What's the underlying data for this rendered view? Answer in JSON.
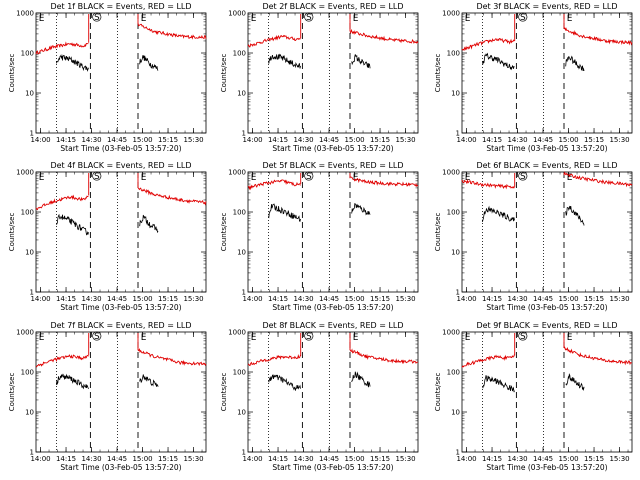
{
  "chart_data": {
    "type": "line",
    "layout": "3x3 grid",
    "shared": {
      "title_suffix": "BLACK = Events, RED = LLD",
      "xlabel": "Start Time (03-Feb-05 13:57:20)",
      "ylabel": "Counts/sec",
      "yscale": "log",
      "ylim": [
        1,
        1000
      ],
      "yticks": [
        {
          "value": 1,
          "label": "1"
        },
        {
          "value": 10,
          "label": "10"
        },
        {
          "value": 100,
          "label": "100"
        },
        {
          "value": 1000,
          "label": "1000"
        }
      ],
      "xlim_minutes": [
        0,
        100
      ],
      "xticks": [
        {
          "t": 2.67,
          "label": "14:00"
        },
        {
          "t": 17.67,
          "label": "14:15"
        },
        {
          "t": 32.67,
          "label": "14:30"
        },
        {
          "t": 47.67,
          "label": "14:45"
        },
        {
          "t": 62.67,
          "label": "15:00"
        },
        {
          "t": 77.67,
          "label": "15:15"
        },
        {
          "t": 92.67,
          "label": "15:30"
        }
      ],
      "dotted_lines_t": [
        12,
        48
      ],
      "dashed_lines_t": [
        32,
        60
      ],
      "markers": [
        {
          "label": "E",
          "t": 1
        },
        {
          "label": "S",
          "t": 34
        },
        {
          "label": "E",
          "t": 61
        }
      ],
      "series_names": [
        "Events",
        "LLD"
      ],
      "series_colors": {
        "Events": "#000000",
        "LLD": "#e00000"
      }
    },
    "panels": [
      {
        "title": "Det 1f",
        "lld_pre": [
          [
            0,
            100
          ],
          [
            10,
            140
          ],
          [
            20,
            170
          ],
          [
            28,
            150
          ],
          [
            31,
            180
          ]
        ],
        "lld_post": [
          [
            60,
            520
          ],
          [
            70,
            340
          ],
          [
            85,
            260
          ],
          [
            100,
            245
          ]
        ],
        "evt_pre": [
          [
            12,
            50
          ],
          [
            14,
            80
          ],
          [
            20,
            70
          ],
          [
            28,
            45
          ],
          [
            31,
            40
          ]
        ],
        "evt_post": [
          [
            61,
            60
          ],
          [
            63,
            80
          ],
          [
            68,
            50
          ],
          [
            72,
            40
          ]
        ]
      },
      {
        "title": "Det 2f",
        "lld_pre": [
          [
            0,
            150
          ],
          [
            10,
            200
          ],
          [
            20,
            260
          ],
          [
            28,
            220
          ],
          [
            31,
            230
          ]
        ],
        "lld_post": [
          [
            60,
            350
          ],
          [
            70,
            270
          ],
          [
            85,
            210
          ],
          [
            100,
            190
          ]
        ],
        "evt_pre": [
          [
            12,
            60
          ],
          [
            14,
            85
          ],
          [
            20,
            75
          ],
          [
            28,
            50
          ],
          [
            31,
            45
          ]
        ],
        "evt_post": [
          [
            61,
            55
          ],
          [
            63,
            80
          ],
          [
            68,
            55
          ],
          [
            72,
            45
          ]
        ]
      },
      {
        "title": "Det 3f",
        "lld_pre": [
          [
            0,
            120
          ],
          [
            10,
            170
          ],
          [
            20,
            220
          ],
          [
            28,
            190
          ],
          [
            31,
            200
          ]
        ],
        "lld_post": [
          [
            60,
            400
          ],
          [
            70,
            270
          ],
          [
            85,
            200
          ],
          [
            100,
            180
          ]
        ],
        "evt_pre": [
          [
            12,
            55
          ],
          [
            14,
            85
          ],
          [
            20,
            70
          ],
          [
            28,
            45
          ],
          [
            31,
            42
          ]
        ],
        "evt_post": [
          [
            61,
            55
          ],
          [
            63,
            80
          ],
          [
            68,
            50
          ],
          [
            72,
            40
          ]
        ]
      },
      {
        "title": "Det 4f",
        "lld_pre": [
          [
            0,
            120
          ],
          [
            10,
            180
          ],
          [
            20,
            240
          ],
          [
            28,
            200
          ],
          [
            31,
            260
          ]
        ],
        "lld_post": [
          [
            60,
            400
          ],
          [
            70,
            270
          ],
          [
            85,
            200
          ],
          [
            100,
            170
          ]
        ],
        "evt_pre": [
          [
            12,
            50
          ],
          [
            14,
            80
          ],
          [
            20,
            60
          ],
          [
            28,
            35
          ],
          [
            31,
            30
          ]
        ],
        "evt_post": [
          [
            61,
            50
          ],
          [
            63,
            75
          ],
          [
            68,
            45
          ],
          [
            72,
            35
          ]
        ]
      },
      {
        "title": "Det 5f",
        "lld_pre": [
          [
            0,
            400
          ],
          [
            10,
            520
          ],
          [
            20,
            600
          ],
          [
            28,
            480
          ],
          [
            31,
            500
          ]
        ],
        "lld_post": [
          [
            60,
            700
          ],
          [
            70,
            560
          ],
          [
            85,
            500
          ],
          [
            100,
            480
          ]
        ],
        "evt_pre": [
          [
            12,
            80
          ],
          [
            14,
            140
          ],
          [
            20,
            110
          ],
          [
            28,
            75
          ],
          [
            31,
            65
          ]
        ],
        "evt_post": [
          [
            61,
            100
          ],
          [
            63,
            150
          ],
          [
            68,
            110
          ],
          [
            72,
            90
          ]
        ]
      },
      {
        "title": "Det 6f",
        "lld_pre": [
          [
            0,
            600
          ],
          [
            10,
            500
          ],
          [
            20,
            450
          ],
          [
            28,
            430
          ],
          [
            31,
            420
          ]
        ],
        "lld_post": [
          [
            60,
            900
          ],
          [
            70,
            700
          ],
          [
            85,
            550
          ],
          [
            100,
            480
          ]
        ],
        "evt_pre": [
          [
            12,
            60
          ],
          [
            14,
            120
          ],
          [
            20,
            100
          ],
          [
            28,
            70
          ],
          [
            31,
            60
          ]
        ],
        "evt_post": [
          [
            61,
            90
          ],
          [
            63,
            140
          ],
          [
            68,
            80
          ],
          [
            72,
            50
          ]
        ]
      },
      {
        "title": "Det 7f",
        "lld_pre": [
          [
            0,
            140
          ],
          [
            10,
            200
          ],
          [
            20,
            250
          ],
          [
            28,
            220
          ],
          [
            31,
            260
          ]
        ],
        "lld_post": [
          [
            60,
            350
          ],
          [
            70,
            240
          ],
          [
            85,
            170
          ],
          [
            100,
            160
          ]
        ],
        "evt_pre": [
          [
            12,
            50
          ],
          [
            14,
            80
          ],
          [
            20,
            70
          ],
          [
            28,
            45
          ],
          [
            31,
            40
          ]
        ],
        "evt_post": [
          [
            61,
            55
          ],
          [
            63,
            80
          ],
          [
            68,
            55
          ],
          [
            72,
            45
          ]
        ]
      },
      {
        "title": "Det 8f",
        "lld_pre": [
          [
            0,
            150
          ],
          [
            10,
            200
          ],
          [
            20,
            240
          ],
          [
            28,
            230
          ],
          [
            31,
            250
          ]
        ],
        "lld_post": [
          [
            60,
            350
          ],
          [
            70,
            240
          ],
          [
            85,
            190
          ],
          [
            100,
            180
          ]
        ],
        "evt_pre": [
          [
            12,
            50
          ],
          [
            14,
            80
          ],
          [
            20,
            65
          ],
          [
            28,
            40
          ],
          [
            31,
            40
          ]
        ],
        "evt_post": [
          [
            61,
            60
          ],
          [
            63,
            90
          ],
          [
            68,
            60
          ],
          [
            72,
            45
          ]
        ]
      },
      {
        "title": "Det 9f",
        "lld_pre": [
          [
            0,
            140
          ],
          [
            10,
            190
          ],
          [
            20,
            240
          ],
          [
            28,
            220
          ],
          [
            31,
            260
          ]
        ],
        "lld_post": [
          [
            60,
            400
          ],
          [
            70,
            260
          ],
          [
            85,
            190
          ],
          [
            100,
            170
          ]
        ],
        "evt_pre": [
          [
            12,
            40
          ],
          [
            14,
            70
          ],
          [
            20,
            60
          ],
          [
            28,
            40
          ],
          [
            31,
            35
          ]
        ],
        "evt_post": [
          [
            61,
            50
          ],
          [
            63,
            75
          ],
          [
            68,
            50
          ],
          [
            72,
            40
          ]
        ]
      }
    ]
  }
}
